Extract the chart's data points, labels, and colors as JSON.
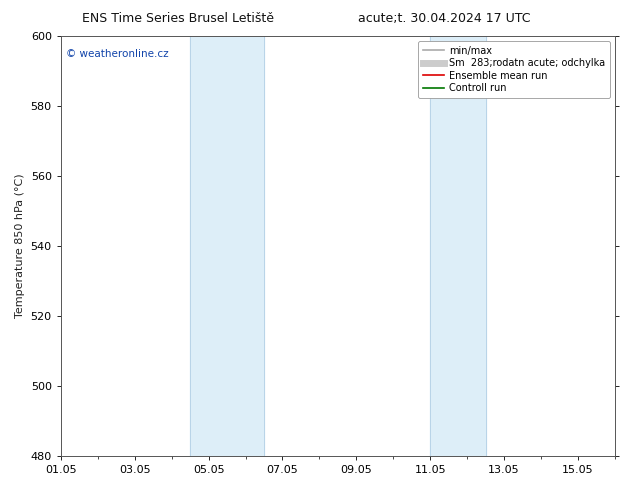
{
  "title_left": "ENS Time Series Brusel Letiště",
  "title_right": "acute;t. 30.04.2024 17 UTC",
  "ylabel": "Temperature 850 hPa (°C)",
  "ylim": [
    480,
    600
  ],
  "yticks": [
    480,
    500,
    520,
    540,
    560,
    580,
    600
  ],
  "xlim_num": [
    0,
    15
  ],
  "xtick_labels": [
    "01.05",
    "03.05",
    "05.05",
    "07.05",
    "09.05",
    "11.05",
    "13.05",
    "15.05"
  ],
  "xtick_positions": [
    0,
    2,
    4,
    6,
    8,
    10,
    12,
    14
  ],
  "shade_bands": [
    {
      "xmin": 3.5,
      "xmax": 5.5
    },
    {
      "xmin": 10.0,
      "xmax": 11.5
    }
  ],
  "shade_color": "#ddeef8",
  "band_line_color": "#b8d4e8",
  "watermark": "© weatheronline.cz",
  "watermark_color": "#1144aa",
  "legend_entries": [
    {
      "label": "min/max",
      "color": "#aaaaaa",
      "lw": 1.2
    },
    {
      "label": "Sm  283;rodatn acute; odchylka",
      "color": "#cccccc",
      "lw": 5
    },
    {
      "label": "Ensemble mean run",
      "color": "#dd0000",
      "lw": 1.2
    },
    {
      "label": "Controll run",
      "color": "#007700",
      "lw": 1.2
    }
  ],
  "bg_color": "#ffffff",
  "spine_color": "#555555",
  "title_fontsize": 9,
  "tick_fontsize": 8,
  "ylabel_fontsize": 8,
  "watermark_fontsize": 7.5,
  "legend_fontsize": 7
}
